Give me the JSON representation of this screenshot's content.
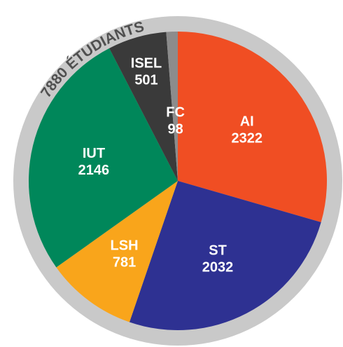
{
  "chart_data": {
    "type": "pie",
    "title": "7880 ÉTUDIANTS",
    "categories": [
      "AI",
      "ST",
      "LSH",
      "IUT",
      "ISEL",
      "FC"
    ],
    "values": [
      2322,
      2032,
      781,
      2146,
      501,
      98
    ],
    "colors": [
      "#f04e23",
      "#2e3192",
      "#f9a51b",
      "#00875a",
      "#3a3a3a",
      "#8c8c8c"
    ]
  }
}
